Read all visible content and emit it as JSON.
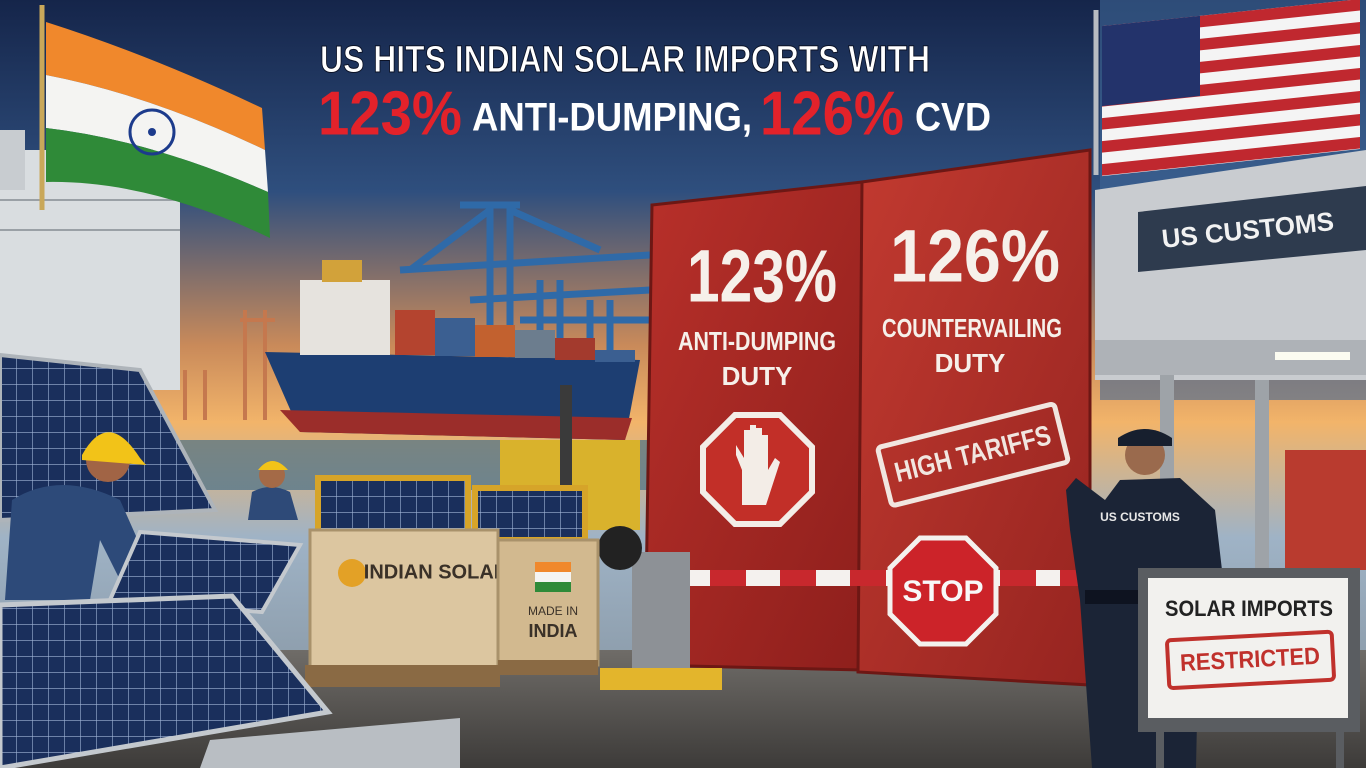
{
  "headline": {
    "line1": "US HITS INDIAN SOLAR IMPORTS WITH",
    "line2": [
      "123%",
      "ANTI-DUMPING,",
      "126%",
      "CVD"
    ]
  },
  "wall": {
    "left": {
      "rate": "123%",
      "label": [
        "ANTI-DUMPING",
        "DUTY"
      ]
    },
    "right": {
      "rate": "126%",
      "label": [
        "COUNTERVAILING",
        "DUTY"
      ],
      "stamp": "HIGH TARIFFS"
    }
  },
  "stop_sign": "STOP",
  "customs": {
    "building_sign": "US CUSTOMS",
    "officer_badge": "US CUSTOMS"
  },
  "crates": {
    "brand": "INDIAN SOLAR",
    "origin": [
      "MADE IN",
      "INDIA"
    ]
  },
  "notice": {
    "title": "SOLAR IMPORTS",
    "stamp": "RESTRICTED"
  }
}
